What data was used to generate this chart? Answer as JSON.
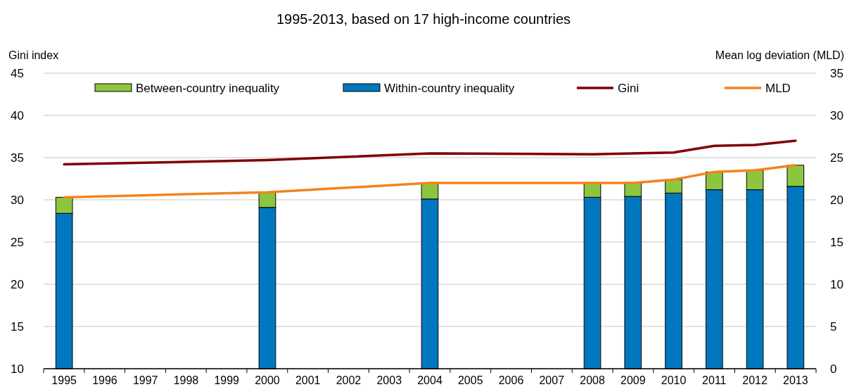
{
  "chart_data": {
    "type": "bar",
    "title": "1995-2013, based on 17 high-income countries",
    "ylabel": "Gini index",
    "y2label": "Mean log deviation (MLD)",
    "categories": [
      "1995",
      "1996",
      "1997",
      "1998",
      "1999",
      "2000",
      "2001",
      "2002",
      "2003",
      "2004",
      "2005",
      "2006",
      "2007",
      "2008",
      "2009",
      "2010",
      "2011",
      "2012",
      "2013"
    ],
    "stacked": true,
    "series": [
      {
        "name": "Within-country inequality",
        "axis": "y2",
        "color": "#0077bf",
        "values": [
          18.4,
          null,
          null,
          null,
          null,
          19.1,
          null,
          null,
          null,
          20.1,
          null,
          null,
          null,
          20.3,
          20.4,
          20.8,
          21.2,
          21.2,
          21.6
        ]
      },
      {
        "name": "Between-country inequality",
        "axis": "y2",
        "color": "#8cc63f",
        "values": [
          1.9,
          null,
          null,
          null,
          null,
          1.8,
          null,
          null,
          null,
          1.9,
          null,
          null,
          null,
          1.7,
          1.6,
          1.6,
          2.1,
          2.3,
          2.5
        ]
      },
      {
        "name": "Gini",
        "type": "line",
        "color": "#800000",
        "values": [
          34.2,
          null,
          null,
          null,
          null,
          34.7,
          null,
          null,
          null,
          35.5,
          null,
          null,
          null,
          35.4,
          35.5,
          35.6,
          36.4,
          36.5,
          37.0
        ]
      },
      {
        "name": "MLD",
        "type": "line",
        "axis": "y2",
        "color": "#f58220",
        "values": [
          20.3,
          null,
          null,
          null,
          null,
          20.9,
          null,
          null,
          null,
          22.0,
          null,
          null,
          null,
          22.0,
          22.0,
          22.4,
          23.3,
          23.5,
          24.1
        ]
      }
    ],
    "ylim": [
      10,
      45
    ],
    "yticks": [
      10,
      15,
      20,
      25,
      30,
      35,
      40,
      45
    ],
    "y2lim": [
      0,
      35
    ],
    "y2ticks": [
      0,
      5,
      10,
      15,
      20,
      25,
      30,
      35
    ],
    "grid": "y",
    "legend": "top",
    "marker": "none",
    "line_style": "solid"
  }
}
